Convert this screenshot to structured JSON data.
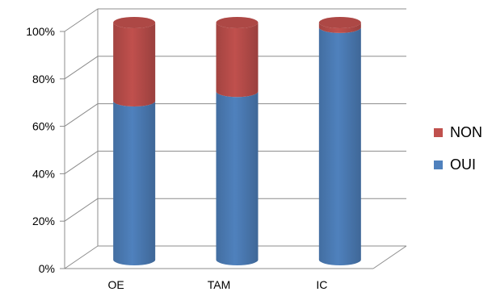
{
  "chart_data": {
    "type": "bar",
    "stacked": true,
    "percent_stacked": true,
    "three_d_cylinder": true,
    "categories": [
      "OE",
      "TAM",
      "IC"
    ],
    "series": [
      {
        "name": "OUI",
        "values": [
          67,
          71,
          98
        ],
        "color": "#4f81bd"
      },
      {
        "name": "NON",
        "values": [
          33,
          29,
          2
        ],
        "color": "#c0504d"
      }
    ],
    "yticks": [
      "0%",
      "20%",
      "40%",
      "60%",
      "80%",
      "100%"
    ],
    "ylim": [
      0,
      100
    ],
    "grid": true,
    "legend_position": "right",
    "legend_order": [
      "NON",
      "OUI"
    ]
  }
}
